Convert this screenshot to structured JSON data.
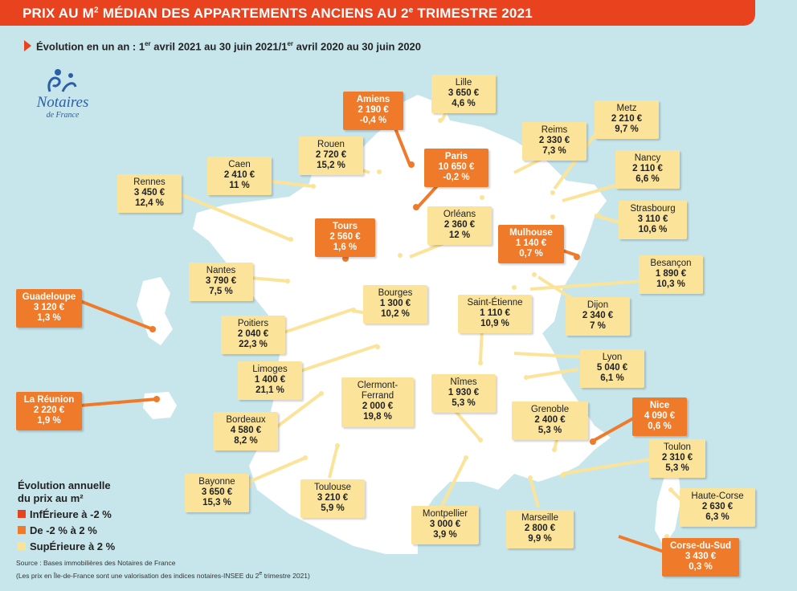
{
  "header": {
    "title_main": "PRIX AU M",
    "title_sup": "2",
    "title_rest": " MÉDIAN DES APPARTEMENTS ANCIENS AU 2",
    "title_sup2": "e",
    "title_end": " TRIMESTRE 2021"
  },
  "subtitle": {
    "a": "Évolution en un an : 1",
    "sup1": "er",
    "b": " avril 2021 au 30 juin 2021/1",
    "sup2": "er",
    "c": " avril 2020 au 30 juin 2020"
  },
  "logo": {
    "name": "Notaires",
    "sub": "de France"
  },
  "colors": {
    "inferieure": "#e8421e",
    "moyenne": "#ef7b2a",
    "superieure": "#fbe49a",
    "header": "#e8421e",
    "sea": "#c7e6ec",
    "land": "#ffffff"
  },
  "cities": [
    {
      "name": "Lille",
      "price": "3 650 €",
      "change": "4,6 %",
      "cat": "sup"
    },
    {
      "name": "Amiens",
      "price": "2 190 €",
      "change": "-0,4 %",
      "cat": "mid"
    },
    {
      "name": "Metz",
      "price": "2 210 €",
      "change": "9,7 %",
      "cat": "sup"
    },
    {
      "name": "Reims",
      "price": "2 330 €",
      "change": "7,3 %",
      "cat": "sup"
    },
    {
      "name": "Rouen",
      "price": "2 720 €",
      "change": "15,2 %",
      "cat": "sup"
    },
    {
      "name": "Paris",
      "price": "10 650 €",
      "change": "-0,2 %",
      "cat": "mid"
    },
    {
      "name": "Caen",
      "price": "2 410 €",
      "change": "11 %",
      "cat": "sup"
    },
    {
      "name": "Nancy",
      "price": "2 110 €",
      "change": "6,6 %",
      "cat": "sup"
    },
    {
      "name": "Rennes",
      "price": "3 450 €",
      "change": "12,4 %",
      "cat": "sup"
    },
    {
      "name": "Strasbourg",
      "price": "3 110 €",
      "change": "10,6 %",
      "cat": "sup"
    },
    {
      "name": "Orléans",
      "price": "2 360 €",
      "change": "12 %",
      "cat": "sup"
    },
    {
      "name": "Tours",
      "price": "2 560 €",
      "change": "1,6 %",
      "cat": "mid"
    },
    {
      "name": "Mulhouse",
      "price": "1 140 €",
      "change": "0,7 %",
      "cat": "mid"
    },
    {
      "name": "Besançon",
      "price": "1 890 €",
      "change": "10,3 %",
      "cat": "sup"
    },
    {
      "name": "Nantes",
      "price": "3 790 €",
      "change": "7,5 %",
      "cat": "sup"
    },
    {
      "name": "Bourges",
      "price": "1 300 €",
      "change": "10,2 %",
      "cat": "sup"
    },
    {
      "name": "Saint-Étienne",
      "price": "1 110 €",
      "change": "10,9 %",
      "cat": "sup"
    },
    {
      "name": "Guadeloupe",
      "price": "3 120 €",
      "change": "1,3 %",
      "cat": "mid"
    },
    {
      "name": "Dijon",
      "price": "2 340 €",
      "change": "7 %",
      "cat": "sup"
    },
    {
      "name": "Poitiers",
      "price": "2 040 €",
      "change": "22,3 %",
      "cat": "sup"
    },
    {
      "name": "Lyon",
      "price": "5 040 €",
      "change": "6,1 %",
      "cat": "sup"
    },
    {
      "name": "Limoges",
      "price": "1 400 €",
      "change": "21,1 %",
      "cat": "sup"
    },
    {
      "name": "Clermont-Ferrand",
      "price": "2 000 €",
      "change": "19,8 %",
      "cat": "sup"
    },
    {
      "name": "Nîmes",
      "price": "1 930 €",
      "change": "5,3 %",
      "cat": "sup"
    },
    {
      "name": "La Réunion",
      "price": "2 220 €",
      "change": "1,9 %",
      "cat": "mid"
    },
    {
      "name": "Nice",
      "price": "4 090 €",
      "change": "0,6 %",
      "cat": "mid"
    },
    {
      "name": "Grenoble",
      "price": "2 400 €",
      "change": "5,3 %",
      "cat": "sup"
    },
    {
      "name": "Bordeaux",
      "price": "4 580 €",
      "change": "8,2 %",
      "cat": "sup"
    },
    {
      "name": "Toulon",
      "price": "2 310 €",
      "change": "5,3 %",
      "cat": "sup"
    },
    {
      "name": "Bayonne",
      "price": "3 650 €",
      "change": "15,3 %",
      "cat": "sup"
    },
    {
      "name": "Toulouse",
      "price": "3 210 €",
      "change": "5,9 %",
      "cat": "sup"
    },
    {
      "name": "Haute-Corse",
      "price": "2 630 €",
      "change": "6,3 %",
      "cat": "sup"
    },
    {
      "name": "Montpellier",
      "price": "3 000 €",
      "change": "3,9 %",
      "cat": "sup"
    },
    {
      "name": "Marseille",
      "price": "2 800 €",
      "change": "9,9 %",
      "cat": "sup"
    },
    {
      "name": "Corse-du-Sud",
      "price": "3 430 €",
      "change": "0,3 %",
      "cat": "mid"
    }
  ],
  "legend": {
    "title1": "Évolution annuelle",
    "title2": "du prix au m²",
    "items": [
      {
        "label": "InfÉrieure à -2 %",
        "color": "#e8421e"
      },
      {
        "label": "De -2 % à 2 %",
        "color": "#ef7b2a"
      },
      {
        "label": "SupÉrieure à 2 %",
        "color": "#fbe49a"
      }
    ]
  },
  "source": {
    "line1": "Source : Bases immobilières des Notaires de France",
    "line2a": "(Les prix en Île-de-France sont une valorisation des indices notaires-INSEE du 2",
    "line2sup": "e",
    "line2b": " trimestre 2021)"
  }
}
